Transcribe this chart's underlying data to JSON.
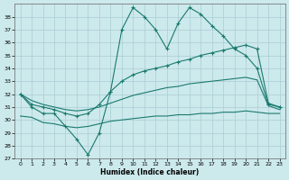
{
  "xlabel": "Humidex (Indice chaleur)",
  "bg_color": "#cce9ec",
  "grid_color": "#aacdd4",
  "line_color": "#1a7a6e",
  "xlim": [
    -0.5,
    23.5
  ],
  "ylim": [
    27,
    39
  ],
  "yticks": [
    27,
    28,
    29,
    30,
    31,
    32,
    33,
    34,
    35,
    36,
    37,
    38
  ],
  "xticks": [
    0,
    1,
    2,
    3,
    4,
    5,
    6,
    7,
    8,
    9,
    10,
    11,
    12,
    13,
    14,
    15,
    16,
    17,
    18,
    19,
    20,
    21,
    22,
    23
  ],
  "s1_x": [
    0,
    1,
    2,
    3,
    4,
    5,
    6,
    7,
    8,
    9,
    10,
    11,
    12,
    13,
    14,
    15,
    16,
    17,
    18,
    19,
    20,
    21,
    22,
    23
  ],
  "s1_y": [
    32.0,
    31.0,
    30.5,
    30.5,
    29.5,
    28.5,
    27.3,
    29.0,
    32.2,
    37.0,
    38.7,
    38.0,
    37.0,
    35.5,
    37.5,
    38.7,
    38.2,
    37.3,
    36.5,
    35.5,
    35.0,
    34.0,
    31.2,
    31.0
  ],
  "s2_x": [
    0,
    1,
    2,
    3,
    4,
    5,
    6,
    7,
    8,
    9,
    10,
    11,
    12,
    13,
    14,
    15,
    16,
    17,
    18,
    19,
    20,
    21,
    22,
    23
  ],
  "s2_y": [
    32.0,
    31.2,
    31.0,
    30.8,
    30.5,
    30.3,
    30.5,
    31.2,
    32.2,
    33.0,
    33.5,
    33.8,
    34.0,
    34.2,
    34.5,
    34.7,
    35.0,
    35.2,
    35.4,
    35.6,
    35.8,
    35.5,
    31.3,
    31.0
  ],
  "s3_x": [
    0,
    1,
    2,
    3,
    4,
    5,
    6,
    7,
    8,
    9,
    10,
    11,
    12,
    13,
    14,
    15,
    16,
    17,
    18,
    19,
    20,
    21,
    22,
    23
  ],
  "s3_y": [
    32.0,
    31.5,
    31.2,
    31.0,
    30.8,
    30.7,
    30.8,
    31.0,
    31.3,
    31.6,
    31.9,
    32.1,
    32.3,
    32.5,
    32.6,
    32.8,
    32.9,
    33.0,
    33.1,
    33.2,
    33.3,
    33.1,
    31.1,
    30.8
  ],
  "s4_x": [
    0,
    1,
    2,
    3,
    4,
    5,
    6,
    7,
    8,
    9,
    10,
    11,
    12,
    13,
    14,
    15,
    16,
    17,
    18,
    19,
    20,
    21,
    22,
    23
  ],
  "s4_y": [
    30.3,
    30.2,
    29.8,
    29.7,
    29.5,
    29.4,
    29.5,
    29.7,
    29.9,
    30.0,
    30.1,
    30.2,
    30.3,
    30.3,
    30.4,
    30.4,
    30.5,
    30.5,
    30.6,
    30.6,
    30.7,
    30.6,
    30.5,
    30.5
  ]
}
